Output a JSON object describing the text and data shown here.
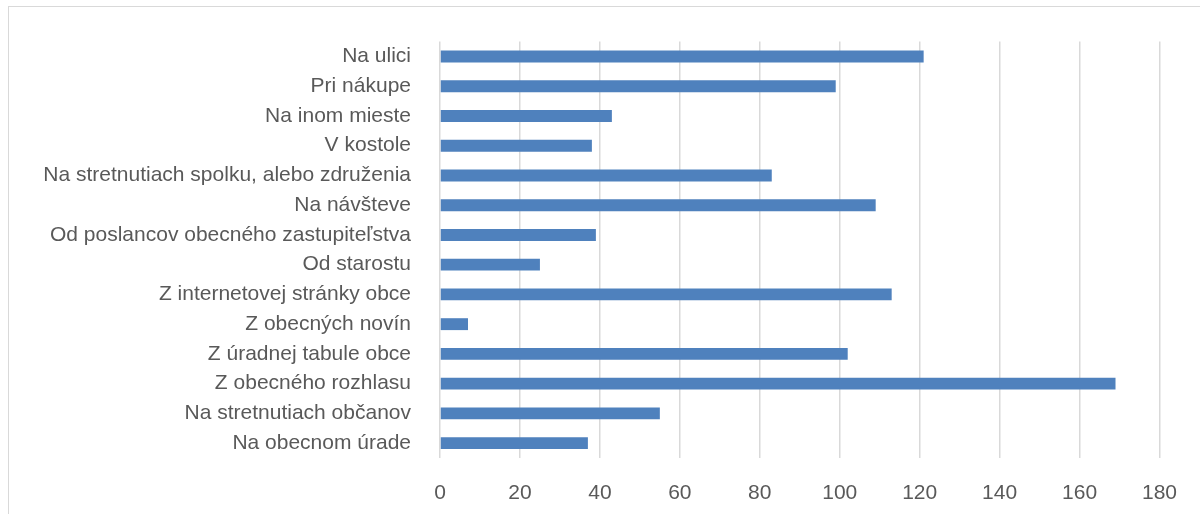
{
  "chart_data": {
    "type": "bar",
    "orientation": "horizontal",
    "categories": [
      "Na ulici",
      "Pri nákupe",
      "Na inom mieste",
      "V kostole",
      "Na stretnutiach spolku, alebo združenia",
      "Na návšteve",
      "Od poslancov obecného zastupiteľstva",
      "Od starostu",
      "Z internetovej stránky obce",
      "Z obecných novín",
      "Z úradnej tabule obce",
      "Z obecného rozhlasu",
      "Na stretnutiach občanov",
      "Na obecnom úrade"
    ],
    "values": [
      121,
      99,
      43,
      38,
      83,
      109,
      39,
      25,
      113,
      7,
      102,
      169,
      55,
      37
    ],
    "color": "#4f81bd",
    "xlim": [
      0,
      180
    ],
    "xticks": [
      0,
      20,
      40,
      60,
      80,
      100,
      120,
      140,
      160,
      180
    ],
    "grid": "x"
  }
}
